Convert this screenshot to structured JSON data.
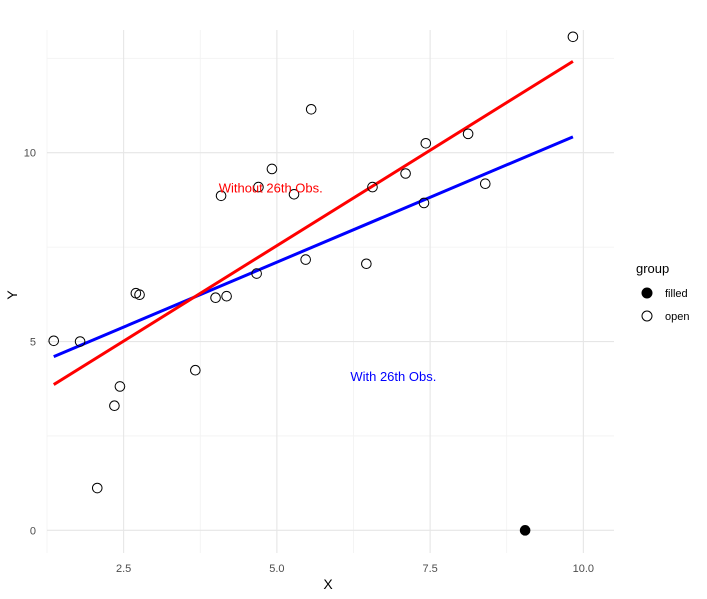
{
  "chart_data": {
    "type": "scatter",
    "xlabel": "X",
    "ylabel": "Y",
    "xlim": [
      1.25,
      10.5
    ],
    "ylim": [
      -0.6,
      13.25
    ],
    "x_ticks": [
      2.5,
      5.0,
      7.5,
      10.0
    ],
    "x_tick_labels": [
      "2.5",
      "5.0",
      "7.5",
      "10.0"
    ],
    "y_ticks": [
      0,
      5,
      10
    ],
    "y_tick_labels": [
      "0",
      "5",
      "10"
    ],
    "grid": true,
    "legend": {
      "title": "group",
      "position": "right",
      "entries": [
        {
          "label": "filled",
          "marker": "filled-circle"
        },
        {
          "label": "open",
          "marker": "open-circle"
        }
      ]
    },
    "series": [
      {
        "name": "open",
        "marker": "open-circle",
        "points": [
          [
            1.36,
            5.02
          ],
          [
            1.79,
            5.0
          ],
          [
            2.07,
            1.12
          ],
          [
            2.35,
            3.3
          ],
          [
            2.44,
            3.81
          ],
          [
            2.7,
            6.28
          ],
          [
            2.76,
            6.24
          ],
          [
            3.67,
            4.24
          ],
          [
            4.0,
            6.16
          ],
          [
            4.09,
            8.86
          ],
          [
            4.18,
            6.2
          ],
          [
            4.67,
            6.8
          ],
          [
            4.7,
            9.09
          ],
          [
            4.92,
            9.57
          ],
          [
            5.28,
            8.9
          ],
          [
            5.47,
            7.17
          ],
          [
            5.56,
            11.15
          ],
          [
            6.46,
            7.06
          ],
          [
            6.56,
            9.09
          ],
          [
            7.1,
            9.45
          ],
          [
            7.4,
            8.67
          ],
          [
            7.43,
            10.25
          ],
          [
            8.12,
            10.5
          ],
          [
            8.4,
            9.18
          ],
          [
            9.83,
            13.07
          ]
        ]
      },
      {
        "name": "filled",
        "marker": "filled-circle",
        "points": [
          [
            9.05,
            0.0
          ]
        ]
      }
    ],
    "lines": [
      {
        "color": "#0000ff",
        "x": [
          1.36,
          9.83
        ],
        "y": [
          4.6,
          10.42
        ]
      },
      {
        "color": "#ff0000",
        "x": [
          1.36,
          9.83
        ],
        "y": [
          3.86,
          12.42
        ]
      }
    ],
    "annotations": [
      {
        "text": "Without 26th Obs.",
        "x": 4.9,
        "y": 8.95,
        "color": "#ff0000"
      },
      {
        "text": "With 26th Obs.",
        "x": 6.9,
        "y": 3.95,
        "color": "#0000ff"
      }
    ]
  }
}
